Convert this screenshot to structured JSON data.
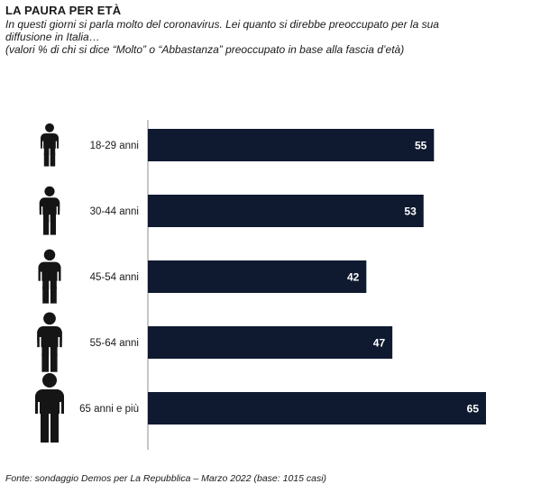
{
  "header": {
    "title": "LA PAURA PER ETÀ",
    "subtitle_lines": [
      "In questi giorni si parla molto del coronavirus. Lei quanto si direbbe preoccupato per la sua",
      "diffusione in Italia…",
      "(valori % di chi si dice “Molto” o “Abbastanza” preoccupato in base alla fascia d’età)"
    ]
  },
  "footer": {
    "source": "Fonte: sondaggio Demos per La Repubblica – Marzo 2022 (base: 1015 casi)"
  },
  "colors": {
    "bar": "#0f1a30",
    "bar_label": "#ffffff",
    "axis": "#8c8c8c",
    "icon": "#151515"
  },
  "icon": "person-icon",
  "chart_data": {
    "type": "bar",
    "orientation": "horizontal",
    "categories": [
      "18-29 anni",
      "30-44 anni",
      "45-54 anni",
      "55-64 anni",
      "65 anni e più"
    ],
    "values": [
      55,
      53,
      42,
      47,
      65
    ],
    "xlim": [
      0,
      65
    ],
    "title": "",
    "xlabel": "",
    "ylabel": "",
    "data_labels": true,
    "grid": false,
    "legend": "none"
  }
}
